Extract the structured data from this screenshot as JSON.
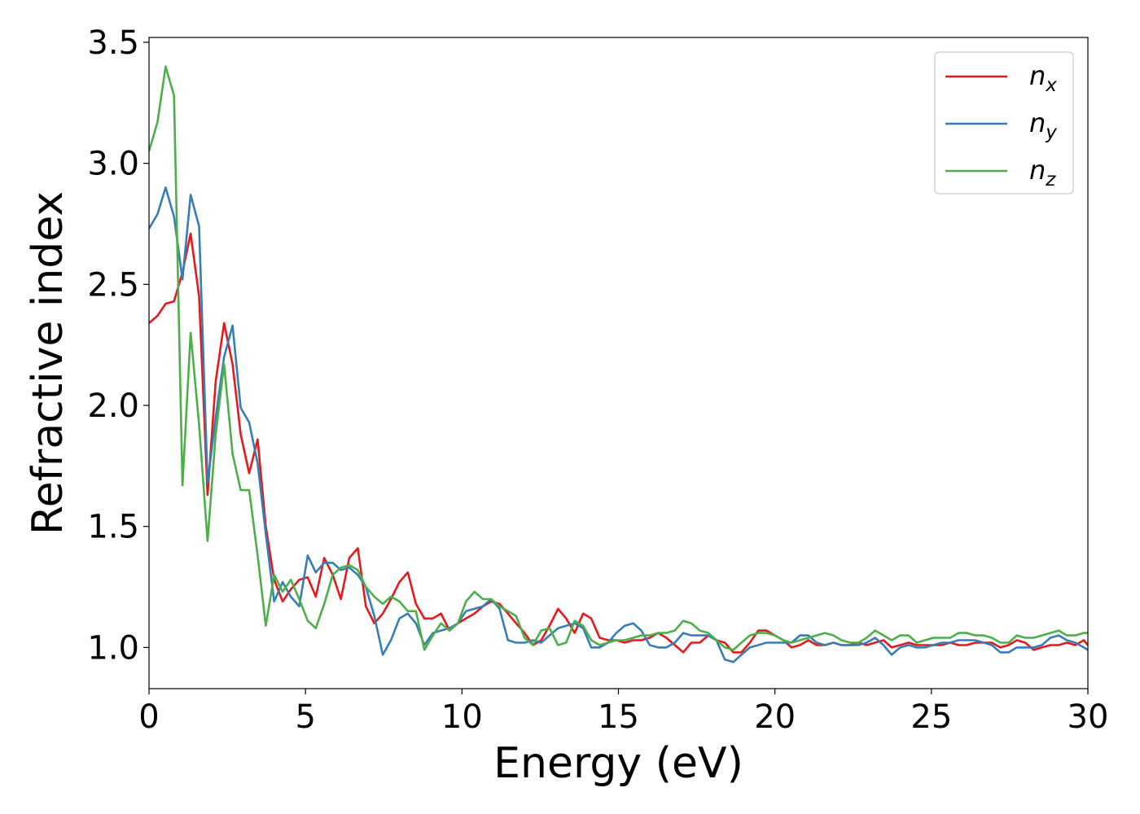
{
  "chart_data": {
    "type": "line",
    "title": "",
    "xlabel": "Energy (eV)",
    "ylabel": "Refractive index",
    "xlim": [
      0,
      30
    ],
    "ylim": [
      0.83,
      3.52
    ],
    "xticks": [
      0,
      5,
      10,
      15,
      20,
      25,
      30
    ],
    "xtick_labels": [
      "0",
      "5",
      "10",
      "15",
      "20",
      "25",
      "30"
    ],
    "yticks": [
      1.0,
      1.5,
      2.0,
      2.5,
      3.0,
      3.5
    ],
    "ytick_labels": [
      "1.0",
      "1.5",
      "2.0",
      "2.5",
      "3.0",
      "3.5"
    ],
    "grid": false,
    "legend_position": "top-right",
    "series": [
      {
        "name": "n_x",
        "label_base": "n",
        "label_sub": "x",
        "color": "#e41a1c",
        "x": [
          0,
          0.27,
          0.53,
          0.8,
          1.07,
          1.33,
          1.6,
          1.87,
          2.13,
          2.4,
          2.67,
          2.93,
          3.2,
          3.47,
          3.73,
          4.0,
          4.27,
          4.53,
          4.8,
          5.07,
          5.33,
          5.6,
          5.87,
          6.13,
          6.4,
          6.67,
          6.93,
          7.2,
          7.47,
          7.73,
          8.0,
          8.27,
          8.53,
          8.8,
          9.07,
          9.33,
          9.6,
          9.87,
          10.13,
          10.4,
          10.67,
          10.93,
          11.2,
          11.47,
          11.73,
          12.0,
          12.27,
          12.53,
          12.8,
          13.07,
          13.33,
          13.6,
          13.87,
          14.13,
          14.4,
          14.67,
          14.93,
          15.2,
          15.47,
          15.73,
          16.0,
          16.27,
          16.53,
          16.8,
          17.07,
          17.33,
          17.6,
          17.87,
          18.13,
          18.4,
          18.67,
          18.93,
          19.2,
          19.47,
          19.73,
          20.0,
          20.27,
          20.53,
          20.8,
          21.07,
          21.33,
          21.6,
          21.87,
          22.13,
          22.4,
          22.67,
          22.93,
          23.2,
          23.47,
          23.73,
          24.0,
          24.27,
          24.53,
          24.8,
          25.07,
          25.33,
          25.6,
          25.87,
          26.13,
          26.4,
          26.67,
          26.93,
          27.2,
          27.47,
          27.73,
          28.0,
          28.27,
          28.53,
          28.8,
          29.07,
          29.33,
          29.6,
          29.87,
          30.0
        ],
        "y": [
          2.34,
          2.37,
          2.42,
          2.43,
          2.55,
          2.71,
          2.45,
          1.63,
          2.1,
          2.34,
          2.17,
          1.88,
          1.72,
          1.86,
          1.5,
          1.28,
          1.19,
          1.24,
          1.28,
          1.29,
          1.21,
          1.37,
          1.3,
          1.2,
          1.37,
          1.41,
          1.17,
          1.1,
          1.14,
          1.2,
          1.27,
          1.31,
          1.18,
          1.12,
          1.12,
          1.14,
          1.07,
          1.1,
          1.12,
          1.14,
          1.17,
          1.19,
          1.18,
          1.14,
          1.1,
          1.06,
          1.01,
          1.03,
          1.09,
          1.16,
          1.12,
          1.06,
          1.14,
          1.12,
          1.04,
          1.03,
          1.03,
          1.02,
          1.03,
          1.03,
          1.04,
          1.06,
          1.04,
          1.01,
          0.98,
          1.02,
          1.02,
          1.05,
          1.03,
          1.02,
          0.98,
          0.98,
          1.02,
          1.07,
          1.07,
          1.05,
          1.03,
          1.0,
          1.01,
          1.03,
          1.01,
          1.01,
          1.02,
          1.01,
          1.01,
          1.02,
          1.01,
          1.02,
          1.03,
          1.0,
          1.01,
          1.02,
          1.01,
          1.01,
          1.01,
          1.01,
          1.02,
          1.01,
          1.01,
          1.02,
          1.02,
          1.02,
          1.0,
          1.01,
          1.03,
          1.02,
          0.99,
          1.0,
          1.01,
          1.01,
          1.02,
          1.01,
          1.03,
          1.01
        ]
      },
      {
        "name": "n_y",
        "label_base": "n",
        "label_sub": "y",
        "color": "#377eb8",
        "x": [
          0,
          0.27,
          0.53,
          0.8,
          1.07,
          1.33,
          1.6,
          1.87,
          2.13,
          2.4,
          2.67,
          2.93,
          3.2,
          3.47,
          3.73,
          4.0,
          4.27,
          4.53,
          4.8,
          5.07,
          5.33,
          5.6,
          5.87,
          6.13,
          6.4,
          6.67,
          6.93,
          7.2,
          7.47,
          7.73,
          8.0,
          8.27,
          8.53,
          8.8,
          9.07,
          9.33,
          9.6,
          9.87,
          10.13,
          10.4,
          10.67,
          10.93,
          11.2,
          11.47,
          11.73,
          12.0,
          12.27,
          12.53,
          12.8,
          13.07,
          13.33,
          13.6,
          13.87,
          14.13,
          14.4,
          14.67,
          14.93,
          15.2,
          15.47,
          15.73,
          16.0,
          16.27,
          16.53,
          16.8,
          17.07,
          17.33,
          17.6,
          17.87,
          18.13,
          18.4,
          18.67,
          18.93,
          19.2,
          19.47,
          19.73,
          20.0,
          20.27,
          20.53,
          20.8,
          21.07,
          21.33,
          21.6,
          21.87,
          22.13,
          22.4,
          22.67,
          22.93,
          23.2,
          23.47,
          23.73,
          24.0,
          24.27,
          24.53,
          24.8,
          25.07,
          25.33,
          25.6,
          25.87,
          26.13,
          26.4,
          26.67,
          26.93,
          27.2,
          27.47,
          27.73,
          28.0,
          28.27,
          28.53,
          28.8,
          29.07,
          29.33,
          29.6,
          29.87,
          30.0
        ],
        "y": [
          2.73,
          2.79,
          2.9,
          2.78,
          2.52,
          2.87,
          2.74,
          1.68,
          1.95,
          2.2,
          2.33,
          1.99,
          1.93,
          1.76,
          1.47,
          1.19,
          1.27,
          1.21,
          1.17,
          1.38,
          1.31,
          1.35,
          1.35,
          1.32,
          1.33,
          1.3,
          1.25,
          1.13,
          0.97,
          1.03,
          1.12,
          1.14,
          1.1,
          1.01,
          1.06,
          1.07,
          1.08,
          1.1,
          1.15,
          1.16,
          1.17,
          1.2,
          1.16,
          1.03,
          1.02,
          1.02,
          1.03,
          1.02,
          1.05,
          1.08,
          1.09,
          1.1,
          1.08,
          1.0,
          1.0,
          1.02,
          1.06,
          1.09,
          1.1,
          1.07,
          1.01,
          1.0,
          1.0,
          1.02,
          1.06,
          1.05,
          1.05,
          1.05,
          1.03,
          0.95,
          0.94,
          0.97,
          1.0,
          1.01,
          1.02,
          1.02,
          1.02,
          1.02,
          1.05,
          1.05,
          1.02,
          1.01,
          1.02,
          1.01,
          1.01,
          1.01,
          1.02,
          1.04,
          1.01,
          0.97,
          1.0,
          1.01,
          1.0,
          1.0,
          1.01,
          1.02,
          1.02,
          1.03,
          1.03,
          1.03,
          1.02,
          1.01,
          0.98,
          0.98,
          1.0,
          1.0,
          1.0,
          1.01,
          1.04,
          1.05,
          1.03,
          1.02,
          1.0,
          0.99
        ]
      },
      {
        "name": "n_z",
        "label_base": "n",
        "label_sub": "z",
        "color": "#4daf4a",
        "x": [
          0,
          0.27,
          0.53,
          0.8,
          1.07,
          1.33,
          1.6,
          1.87,
          2.13,
          2.4,
          2.67,
          2.93,
          3.2,
          3.47,
          3.73,
          4.0,
          4.27,
          4.53,
          4.8,
          5.07,
          5.33,
          5.6,
          5.87,
          6.13,
          6.4,
          6.67,
          6.93,
          7.2,
          7.47,
          7.73,
          8.0,
          8.27,
          8.53,
          8.8,
          9.07,
          9.33,
          9.6,
          9.87,
          10.13,
          10.4,
          10.67,
          10.93,
          11.2,
          11.47,
          11.73,
          12.0,
          12.27,
          12.53,
          12.8,
          13.07,
          13.33,
          13.6,
          13.87,
          14.13,
          14.4,
          14.67,
          14.93,
          15.2,
          15.47,
          15.73,
          16.0,
          16.27,
          16.53,
          16.8,
          17.07,
          17.33,
          17.6,
          17.87,
          18.13,
          18.4,
          18.67,
          18.93,
          19.2,
          19.47,
          19.73,
          20.0,
          20.27,
          20.53,
          20.8,
          21.07,
          21.33,
          21.6,
          21.87,
          22.13,
          22.4,
          22.67,
          22.93,
          23.2,
          23.47,
          23.73,
          24.0,
          24.27,
          24.53,
          24.8,
          25.07,
          25.33,
          25.6,
          25.87,
          26.13,
          26.4,
          26.67,
          26.93,
          27.2,
          27.47,
          27.73,
          28.0,
          28.27,
          28.53,
          28.8,
          29.07,
          29.33,
          29.6,
          29.87,
          30.0
        ],
        "y": [
          3.05,
          3.17,
          3.4,
          3.28,
          1.67,
          2.3,
          1.92,
          1.44,
          1.88,
          2.17,
          1.8,
          1.65,
          1.65,
          1.38,
          1.09,
          1.3,
          1.23,
          1.28,
          1.2,
          1.11,
          1.08,
          1.18,
          1.3,
          1.33,
          1.34,
          1.32,
          1.25,
          1.21,
          1.18,
          1.21,
          1.19,
          1.15,
          1.15,
          0.99,
          1.05,
          1.1,
          1.07,
          1.1,
          1.19,
          1.23,
          1.2,
          1.2,
          1.17,
          1.15,
          1.13,
          1.04,
          1.01,
          1.07,
          1.08,
          1.01,
          1.02,
          1.11,
          1.09,
          1.03,
          1.01,
          1.02,
          1.03,
          1.03,
          1.04,
          1.05,
          1.05,
          1.06,
          1.06,
          1.07,
          1.11,
          1.1,
          1.07,
          1.06,
          1.03,
          1.0,
          0.99,
          1.02,
          1.05,
          1.06,
          1.06,
          1.05,
          1.03,
          1.02,
          1.03,
          1.04,
          1.05,
          1.06,
          1.05,
          1.03,
          1.02,
          1.02,
          1.04,
          1.07,
          1.05,
          1.03,
          1.05,
          1.05,
          1.02,
          1.03,
          1.04,
          1.04,
          1.04,
          1.06,
          1.06,
          1.05,
          1.05,
          1.04,
          1.02,
          1.02,
          1.05,
          1.04,
          1.04,
          1.05,
          1.06,
          1.07,
          1.05,
          1.05,
          1.06,
          1.06
        ]
      }
    ]
  }
}
